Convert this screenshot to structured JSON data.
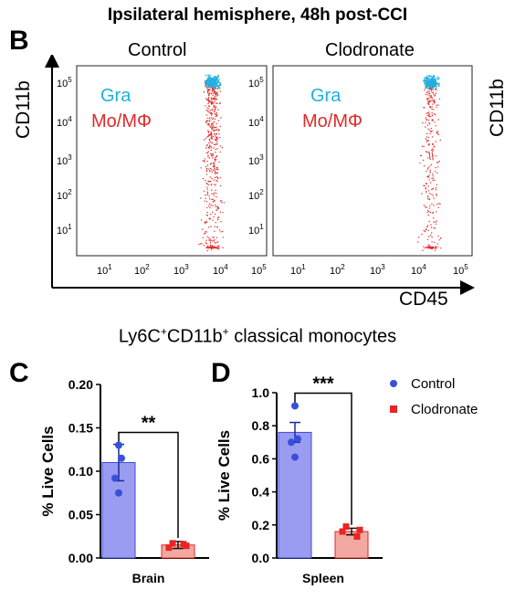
{
  "figure_title": "Ipsilateral hemisphere, 48h post-CCI",
  "panel_b": {
    "letter": "B",
    "conditions": [
      "Control",
      "Clodronate"
    ],
    "y_axis_label": "CD11b",
    "x_axis_label": "CD45",
    "legend": [
      {
        "name": "Gra",
        "color": "#1fb0e0"
      },
      {
        "name": "Mo/MΦ",
        "color": "#e02a2a"
      }
    ],
    "y_ticks": [
      {
        "base": "10",
        "exp": "5"
      },
      {
        "base": "10",
        "exp": "4"
      },
      {
        "base": "10",
        "exp": "3"
      },
      {
        "base": "10",
        "exp": "2"
      },
      {
        "base": "10",
        "exp": "1"
      }
    ],
    "x_ticks": [
      {
        "base": "10",
        "exp": "1"
      },
      {
        "base": "10",
        "exp": "2"
      },
      {
        "base": "10",
        "exp": "3"
      },
      {
        "base": "10",
        "exp": "4"
      },
      {
        "base": "10",
        "exp": "5"
      }
    ]
  },
  "section_title": {
    "pre": "Ly6C",
    "sup1": "+",
    "mid": "CD11b",
    "sup2": "+",
    "post": " classical monocytes"
  },
  "chart_data": [
    {
      "type": "bar",
      "panel": "C",
      "categories": [
        "Control",
        "Clodronate"
      ],
      "values": [
        0.11,
        0.015
      ],
      "errors": [
        0.021,
        0.004
      ],
      "points": [
        [
          0.13,
          0.115,
          0.092,
          0.075
        ],
        [
          0.017,
          0.014,
          0.012,
          0.016
        ]
      ],
      "ylabel": "% Live Cells",
      "xlabel": "Brain",
      "ylim": [
        0,
        0.2
      ],
      "yticks": [
        "0.00",
        "0.05",
        "0.10",
        "0.15",
        "0.20"
      ],
      "significance": "**"
    },
    {
      "type": "bar",
      "panel": "D",
      "categories": [
        "Control",
        "Clodronate"
      ],
      "values": [
        0.76,
        0.16
      ],
      "errors": [
        0.06,
        0.02
      ],
      "points": [
        [
          0.92,
          0.72,
          0.7,
          0.61
        ],
        [
          0.19,
          0.17,
          0.16,
          0.13
        ]
      ],
      "ylabel": "% Live Cells",
      "xlabel": "Spleen",
      "ylim": [
        0,
        1.0
      ],
      "yticks": [
        "0.0",
        "0.2",
        "0.4",
        "0.6",
        "0.8",
        "1.0"
      ],
      "significance": "***"
    }
  ],
  "bar_legend": [
    {
      "name": "Control",
      "color": "#3a4fd8",
      "bar_color": "#9a9cf2"
    },
    {
      "name": "Clodronate",
      "color": "#e82424",
      "bar_color": "#f4a8a2"
    }
  ]
}
